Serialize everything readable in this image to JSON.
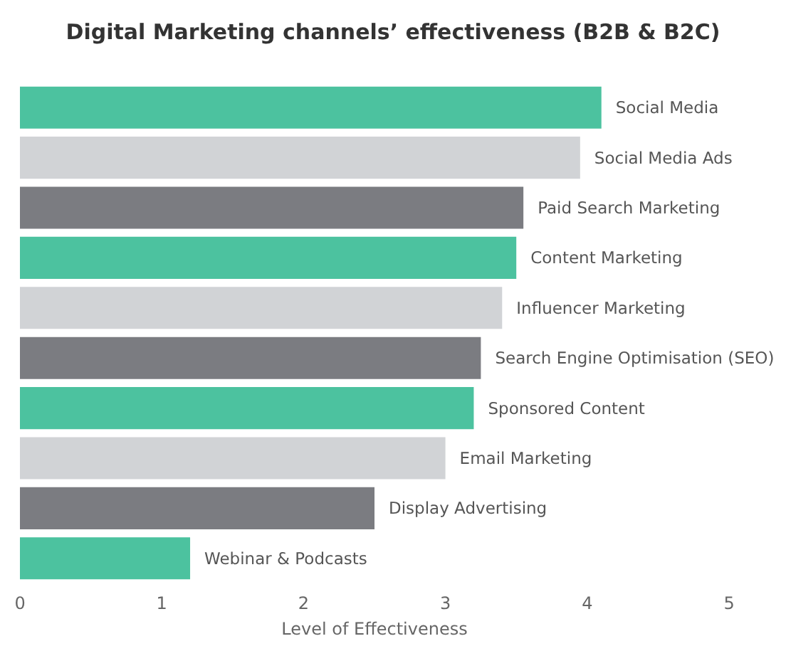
{
  "chart_data": {
    "type": "bar",
    "orientation": "horizontal",
    "title": "Digital Marketing channels’ effectiveness (B2B & B2C)",
    "xlabel": "Level of Effectiveness",
    "categories": [
      "Social Media",
      "Social Media Ads",
      "Paid Search Marketing",
      "Content Marketing",
      "Influencer Marketing",
      "Search Engine Optimisation (SEO)",
      "Sponsored Content",
      "Email Marketing",
      "Display Advertising",
      "Webinar & Podcasts"
    ],
    "values": [
      4.1,
      3.95,
      3.55,
      3.5,
      3.4,
      3.25,
      3.2,
      3.0,
      2.5,
      1.2
    ],
    "colors": [
      "#4cc29f",
      "#d1d3d6",
      "#7b7c81",
      "#4cc29f",
      "#d1d3d6",
      "#7b7c81",
      "#4cc29f",
      "#d1d3d6",
      "#7b7c81",
      "#4cc29f"
    ],
    "xlim": [
      0,
      5
    ],
    "xticks": [
      0,
      1,
      2,
      3,
      4,
      5
    ],
    "grid": false
  }
}
